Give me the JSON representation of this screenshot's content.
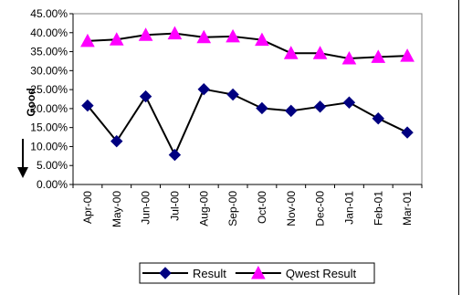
{
  "chart_data": {
    "type": "line",
    "categories": [
      "Apr-00",
      "May-00",
      "Jun-00",
      "Jul-00",
      "Aug-00",
      "Sep-00",
      "Oct-00",
      "Nov-00",
      "Dec-00",
      "Jan-01",
      "Feb-01",
      "Mar-01"
    ],
    "series": [
      {
        "name": "Result",
        "values": [
          20.8,
          11.4,
          23.2,
          7.8,
          25.1,
          23.7,
          20.1,
          19.4,
          20.5,
          21.6,
          17.4,
          13.7
        ],
        "color": "#000080",
        "marker": "diamond"
      },
      {
        "name": "Qwest Result",
        "values": [
          37.8,
          38.2,
          39.4,
          39.8,
          38.8,
          39.0,
          38.1,
          34.6,
          34.6,
          33.2,
          33.6,
          33.9
        ],
        "color": "#ff00ff",
        "marker": "triangle"
      }
    ],
    "ylim": [
      0,
      45
    ],
    "ytick_step": 5,
    "yticks": [
      "0.00%",
      "5.00%",
      "10.00%",
      "15.00%",
      "20.00%",
      "25.00%",
      "30.00%",
      "35.00%",
      "40.00%",
      "45.00%"
    ],
    "ylabel": "Good",
    "ylabel_arrow": "down",
    "grid": false,
    "legend": "bottom-center"
  }
}
